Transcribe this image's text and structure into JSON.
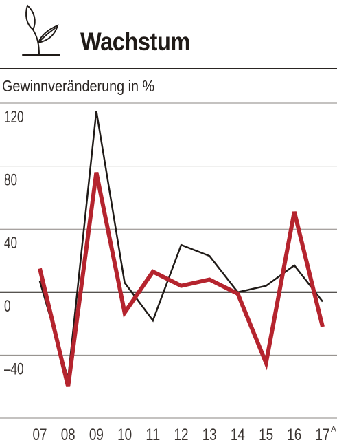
{
  "chart_data": {
    "type": "line",
    "title": "Wachstum",
    "ylabel": "Gewinnveränderung in %",
    "xlabel": "",
    "categories": [
      "07",
      "08",
      "09",
      "10",
      "11",
      "12",
      "13",
      "14",
      "15",
      "16",
      "17"
    ],
    "category_superscripts": {
      "17": "A"
    },
    "yticks": [
      120,
      80,
      40,
      0,
      -40
    ],
    "ytick_labels": [
      "120",
      "80",
      "40",
      "0",
      "–40"
    ],
    "ylim": [
      -80,
      120
    ],
    "grid": true,
    "series": [
      {
        "values": [
          7,
          -55,
          115,
          6,
          -18,
          30,
          23,
          0,
          4,
          17,
          -6
        ],
        "color": "#1f1a17"
      },
      {
        "values": [
          15,
          -60,
          76,
          -13,
          13,
          4,
          8,
          -1,
          -45,
          51,
          -22
        ],
        "color": "#b5242e"
      }
    ]
  },
  "icon": "plant-sprout-icon"
}
